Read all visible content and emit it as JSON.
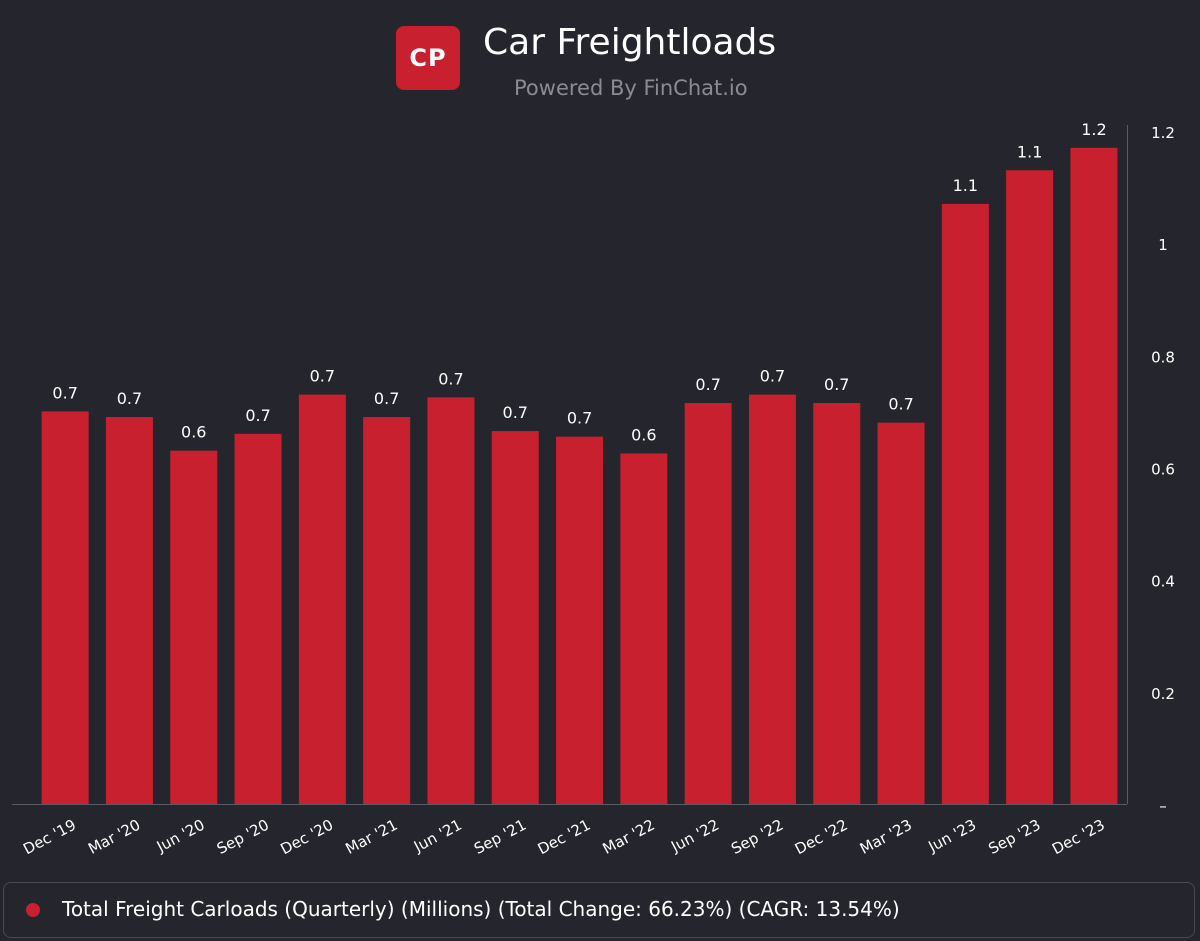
{
  "header": {
    "logo_text": "CP",
    "title": "Car Freightloads",
    "subtitle": "Powered By FinChat.io"
  },
  "colors": {
    "background": "#25252d",
    "bar": "#c8202f",
    "text": "#ffffff",
    "muted": "#8b8b95",
    "axis": "#5a5a64"
  },
  "chart_data": {
    "type": "bar",
    "title": "Car Freightloads",
    "xlabel": "",
    "ylabel": "",
    "categories": [
      "Dec '19",
      "Mar '20",
      "Jun '20",
      "Sep '20",
      "Dec '20",
      "Mar '21",
      "Jun '21",
      "Sep '21",
      "Dec '21",
      "Mar '22",
      "Jun '22",
      "Sep '22",
      "Dec '22",
      "Mar '23",
      "Jun '23",
      "Sep '23",
      "Dec '23"
    ],
    "series": [
      {
        "name": "Total Freight Carloads (Quarterly) (Millions)",
        "values": [
          0.7,
          0.69,
          0.63,
          0.66,
          0.73,
          0.69,
          0.725,
          0.665,
          0.655,
          0.625,
          0.715,
          0.73,
          0.715,
          0.68,
          1.07,
          1.13,
          1.17
        ],
        "labels": [
          "0.7",
          "0.7",
          "0.6",
          "0.7",
          "0.7",
          "0.7",
          "0.7",
          "0.7",
          "0.7",
          "0.6",
          "0.7",
          "0.7",
          "0.7",
          "0.7",
          "1.1",
          "1.1",
          "1.2"
        ]
      }
    ],
    "y_ticks": [
      0,
      0.2,
      0.4,
      0.6,
      0.8,
      1,
      1.2
    ],
    "y_tick_labels": [
      "–",
      "0.2",
      "0.4",
      "0.6",
      "0.8",
      "1",
      "1.2"
    ],
    "ylim": [
      0,
      1.2
    ],
    "y_axis_side": "right",
    "grid": false,
    "legend_position": "bottom"
  },
  "legend": {
    "text": "Total Freight Carloads (Quarterly) (Millions) (Total Change: 66.23%) (CAGR: 13.54%)"
  }
}
